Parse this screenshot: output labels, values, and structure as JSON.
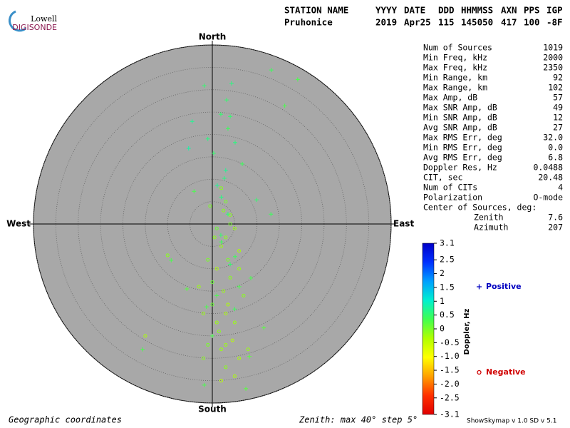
{
  "logo": {
    "top": "Lowell",
    "bottom": "DIGISONDE"
  },
  "header": {
    "labels": [
      "STATION NAME",
      "YYYY",
      "DATE",
      "DDD",
      "HHMMSS",
      "AXN",
      "PPS",
      "IGP"
    ],
    "values": [
      "Pruhonice",
      "2019",
      "Apr25",
      "115",
      "145050",
      "417",
      "100",
      "-8F"
    ]
  },
  "stats": {
    "rows": [
      [
        "Num of Sources",
        "1019"
      ],
      [
        "Min Freq, kHz",
        "2000"
      ],
      [
        "Max Freq, kHz",
        "2350"
      ],
      [
        "Min Range, km",
        "92"
      ],
      [
        "Max Range, km",
        "102"
      ],
      [
        "Max Amp, dB",
        "57"
      ],
      [
        "Max SNR Amp, dB",
        "49"
      ],
      [
        "Min SNR Amp, dB",
        "12"
      ],
      [
        "Avg SNR Amp, dB",
        "27"
      ],
      [
        "Max RMS Err, deg",
        "32.0"
      ],
      [
        "Min RMS Err, deg",
        "0.0"
      ],
      [
        "Avg RMS Err, deg",
        "6.8"
      ],
      [
        "Doppler Res, Hz",
        "0.0488"
      ],
      [
        "CIT, sec",
        "20.48"
      ],
      [
        "Num of CITs",
        "4"
      ],
      [
        "Polarization",
        "O-mode"
      ],
      [
        "Center of Sources, deg:"
      ],
      [
        "Zenith",
        "7.6"
      ],
      [
        "Azimuth",
        "207"
      ]
    ]
  },
  "chart_data": {
    "type": "skymap",
    "directions": {
      "north": "North",
      "south": "South",
      "east": "East",
      "west": "West"
    },
    "rlim": [
      0,
      40
    ],
    "rticks": [
      5,
      10,
      15,
      20,
      25,
      30,
      35,
      40
    ],
    "colorbar": {
      "label": "Doppler, Hz",
      "clim": [
        -3.1,
        3.1
      ],
      "colormap": [
        "#0000c8",
        "#0030ff",
        "#00a0ff",
        "#00f0d0",
        "#40ff50",
        "#b0ff00",
        "#ffff00",
        "#ffa000",
        "#ff3000",
        "#e00000"
      ],
      "ticks": [
        3.1,
        2.5,
        2,
        1.5,
        1,
        0.5,
        0,
        -0.5,
        {
          "value": -1,
          "label": "-1.0"
        },
        -1.5,
        {
          "value": -2,
          "label": "-2.0"
        },
        -2.5,
        -3.1
      ]
    },
    "series": [
      {
        "name": "Positive",
        "marker": "plus",
        "color": "#0000c0",
        "x": [
          13.2,
          19.1,
          -1.8,
          4.3,
          16.2,
          -4.5,
          1.9,
          3.5,
          -5.3,
          0.3,
          5.1,
          6.7,
          -4.1,
          9.9,
          13.1,
          -9.2,
          -5.7,
          8.6,
          -15.6,
          11.5,
          -1.8,
          7.5,
          1.9,
          3.5,
          1.1,
          5.1,
          -1.3,
          8.3,
          2.7,
          3.2,
          2,
          4,
          1,
          5,
          0,
          3,
          -1,
          4,
          2,
          6
        ],
        "y": [
          34.4,
          32.3,
          30.9,
          31.4,
          26.4,
          22.9,
          24.5,
          21.3,
          16.9,
          15.8,
          18.2,
          13.4,
          7.3,
          5.4,
          2.2,
          -8.1,
          -14.5,
          -12.1,
          -28,
          -23.2,
          -36,
          -36.8,
          -2.5,
          2.2,
          8.6,
          -7.3,
          -18.5,
          -29.6,
          10.2,
          27.7,
          -4,
          -9,
          -16,
          -19,
          -25,
          12,
          19,
          24,
          6,
          -14
        ],
        "doppler": [
          0.4,
          0.3,
          0.5,
          0.6,
          0.3,
          0.7,
          0.5,
          0.4,
          0.8,
          0.5,
          0.6,
          0.4,
          0.3,
          0.5,
          0.4,
          0.3,
          0.2,
          0.3,
          0.3,
          0.2,
          0.3,
          0.2,
          0.5,
          0.6,
          0.7,
          0.4,
          0.3,
          0.2,
          0.6,
          0.5,
          0.4,
          0.5,
          0.3,
          0.4,
          0.3,
          0.7,
          0.6,
          0.5,
          0.6,
          0.3
        ]
      },
      {
        "name": "Negative",
        "marker": "circle",
        "color": "#d00000",
        "x": [
          0.5,
          2,
          3.5,
          1,
          4,
          2.5,
          0,
          3,
          5,
          1.5,
          4.5,
          2,
          6,
          3,
          -1,
          -2,
          1,
          4,
          3,
          2,
          5,
          6,
          -1,
          -3,
          7,
          3.5,
          1,
          2,
          -2,
          5,
          4,
          2.5,
          6,
          0,
          3,
          -10,
          -15,
          8,
          -0.5,
          3
        ],
        "y": [
          -3,
          -5,
          -8,
          -10,
          -12,
          -15,
          -18,
          -20,
          -22,
          -24,
          -26,
          -28,
          -30,
          -32,
          -27,
          -20,
          -1,
          2,
          5,
          8,
          -1,
          -6,
          -8,
          -14,
          -16,
          -18,
          -22,
          -35,
          -30,
          -34,
          0,
          3,
          -10,
          -13,
          -27,
          -7,
          -25,
          -28,
          4,
          -3
        ],
        "doppler": [
          -0.1,
          -0.2,
          0,
          -0.3,
          -0.1,
          -0.2,
          0.1,
          -0.3,
          -0.2,
          -0.1,
          -0.4,
          -0.2,
          -0.3,
          -0.1,
          0,
          -0.2,
          0.1,
          -0.1,
          0,
          -0.1,
          -0.2,
          -0.3,
          0,
          -0.2,
          -0.1,
          -0.3,
          -0.2,
          -0.4,
          -0.1,
          -0.3,
          0,
          -0.1,
          -0.2,
          0.1,
          -0.2,
          -0.1,
          -0.3,
          -0.2,
          0,
          -0.1
        ]
      }
    ]
  },
  "footer": {
    "left": "Geographic coordinates",
    "center": "Zenith: max 40°  step 5°",
    "right": "ShowSkymap v 1.0  SD v 5.1"
  }
}
